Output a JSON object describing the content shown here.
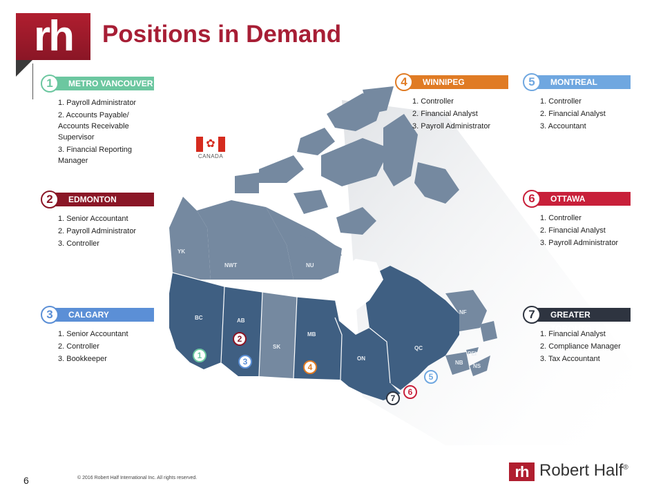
{
  "header": {
    "logo_text": "rh",
    "title": "Positions in Demand"
  },
  "flag": {
    "label": "CANADA"
  },
  "cities": [
    {
      "number": "1",
      "name": "METRO VANCOUVER",
      "color": "#6cc7a0",
      "positions": [
        "1. Payroll Administrator",
        "2. Accounts Payable/ Accounts Receivable Supervisor",
        "3. Financial Reporting Manager"
      ]
    },
    {
      "number": "2",
      "name": "EDMONTON",
      "color": "#8a1626",
      "positions": [
        "1. Senior Accountant",
        "2. Payroll Administrator",
        "3. Controller"
      ]
    },
    {
      "number": "3",
      "name": "CALGARY",
      "color": "#5b8fd6",
      "positions": [
        "1. Senior Accountant",
        "2. Controller",
        "3. Bookkeeper"
      ]
    },
    {
      "number": "4",
      "name": "WINNIPEG",
      "color": "#e07b24",
      "positions": [
        "1. Controller",
        "2. Financial Analyst",
        "3. Payroll Administrator"
      ]
    },
    {
      "number": "5",
      "name": "MONTREAL",
      "color": "#6fa7e0",
      "positions": [
        "1. Controller",
        "2. Financial Analyst",
        "3. Accountant"
      ]
    },
    {
      "number": "6",
      "name": "OTTAWA",
      "color": "#c8203a",
      "positions": [
        "1. Controller",
        "2. Financial Analyst",
        "3. Payroll Administrator"
      ]
    },
    {
      "number": "7",
      "name": "GREATER TORONTO",
      "color": "#2e3440",
      "positions": [
        "1. Financial Analyst",
        "2. Compliance Manager",
        "3. Tax Accountant"
      ]
    }
  ],
  "map": {
    "land_color": "#7589a0",
    "highlight_color": "#3f5f82",
    "labels": {
      "yk": "YK",
      "nwt": "NWT",
      "nu": "NU",
      "bc": "BC",
      "ab": "AB",
      "sk": "SK",
      "mb": "MB",
      "on": "ON",
      "qc": "QC",
      "nf": "NF",
      "nb": "NB",
      "pei": "PEI",
      "ns": "NS"
    }
  },
  "footer": {
    "page_number": "6",
    "copyright": "© 2016 Robert Half International Inc. All rights reserved.",
    "brand_mark": "rh",
    "brand_name": "Robert Half",
    "registered": "®"
  }
}
